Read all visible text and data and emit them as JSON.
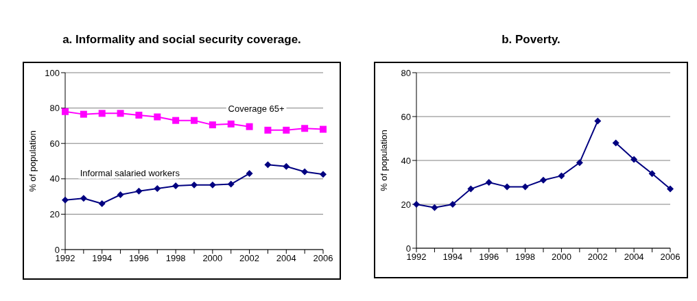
{
  "chart_data": [
    {
      "type": "line",
      "title": "a. Informality and social security coverage.",
      "ylabel": "% of population",
      "categories": [
        "1992",
        null,
        "1994",
        null,
        "1996",
        null,
        "1998",
        null,
        "2000",
        null,
        "2002",
        null,
        "2004",
        null,
        "2006"
      ],
      "series": [
        {
          "name": "Coverage 65+",
          "color": "#ff00ff",
          "marker": "square",
          "values": [
            78,
            76.5,
            77,
            77,
            76,
            75,
            73,
            73,
            70.5,
            71,
            69.5,
            null,
            null,
            null,
            null
          ]
        },
        {
          "color": "#ff00ff",
          "marker": "square",
          "values": [
            null,
            null,
            null,
            null,
            null,
            null,
            null,
            null,
            null,
            null,
            null,
            67.5,
            67.5,
            68.5,
            68
          ]
        },
        {
          "name": "Informal salaried workers",
          "color": "#000080",
          "marker": "diamond",
          "values": [
            28,
            29,
            26,
            31,
            33,
            34.5,
            36,
            36.5,
            36.5,
            37,
            43,
            null,
            null,
            null,
            null
          ]
        },
        {
          "color": "#000080",
          "marker": "diamond",
          "values": [
            null,
            null,
            null,
            null,
            null,
            null,
            null,
            null,
            null,
            null,
            null,
            48,
            47,
            44,
            42.5
          ]
        }
      ],
      "ylim": [
        0,
        100
      ],
      "yticks": [
        0,
        20,
        40,
        60,
        80,
        100
      ],
      "grid": "y",
      "legend": false
    },
    {
      "type": "line",
      "title": "b. Poverty.",
      "ylabel": "% of population",
      "categories": [
        "1992",
        null,
        "1994",
        null,
        "1996",
        null,
        "1998",
        null,
        "2000",
        null,
        "2002",
        null,
        "2004",
        null,
        "2006"
      ],
      "series": [
        {
          "color": "#000080",
          "marker": "diamond",
          "values": [
            20,
            18.5,
            20,
            27,
            30,
            28,
            28,
            31,
            33,
            39,
            58,
            null,
            null,
            null,
            null
          ]
        },
        {
          "color": "#000080",
          "marker": "diamond",
          "values": [
            null,
            null,
            null,
            null,
            null,
            null,
            null,
            null,
            null,
            null,
            null,
            48,
            40.5,
            34,
            27
          ]
        }
      ],
      "ylim": [
        0,
        80
      ],
      "yticks": [
        0,
        20,
        40,
        60,
        80
      ],
      "grid": "y",
      "legend": false
    }
  ]
}
